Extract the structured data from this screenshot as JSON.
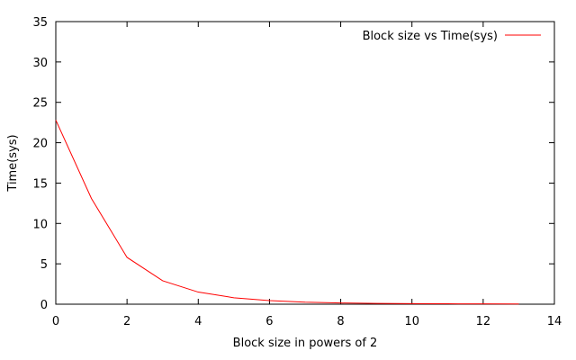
{
  "chart_data": {
    "type": "line",
    "xlabel": "Block size in powers of 2",
    "ylabel": "Time(sys)",
    "xlim": [
      0,
      14
    ],
    "ylim": [
      0,
      35
    ],
    "xticks": [
      "0",
      "2",
      "4",
      "6",
      "8",
      "10",
      "12",
      "14"
    ],
    "yticks": [
      "0",
      "5",
      "10",
      "15",
      "20",
      "25",
      "30",
      "35"
    ],
    "grid": false,
    "legend_position": "top-right",
    "series": [
      {
        "name": "Block size vs Time(sys)",
        "color": "#ff0000",
        "x": [
          0,
          1,
          2,
          3,
          4,
          5,
          6,
          7,
          8,
          9,
          10,
          11,
          12,
          13
        ],
        "y": [
          22.8,
          13.1,
          5.8,
          2.9,
          1.5,
          0.8,
          0.45,
          0.25,
          0.15,
          0.1,
          0.07,
          0.05,
          0.04,
          0.03
        ]
      }
    ]
  }
}
